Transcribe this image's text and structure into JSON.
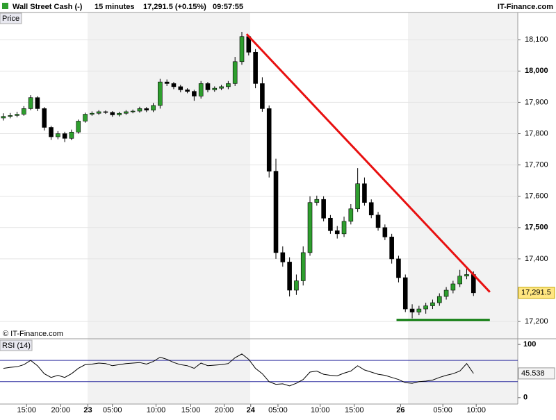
{
  "header": {
    "title": "Wall Street Cash (-)",
    "interval": "15 minutes",
    "price": "17,291.5 (+0.15%)",
    "time": "09:57:55",
    "brand": "IT-Finance.com"
  },
  "chart_data": [
    {
      "type": "candlestick",
      "label": "Price",
      "credit": "© IT-Finance.com",
      "up_color": "#2e9e2e",
      "down_color": "#000000",
      "x": [
        0.5,
        1.5,
        2.5,
        3.5,
        4.5,
        5.5,
        6.5,
        7.5,
        8.5,
        9.5,
        10.5,
        11.5,
        12.5,
        13.5,
        14.5,
        15.5,
        16.5,
        17.5,
        18.5,
        19.5,
        20.5,
        21.5,
        22.5,
        23.5,
        24.5,
        25.5,
        26.5,
        27.5,
        28.5,
        29.5,
        30.5,
        31.5,
        32.5,
        33.5,
        34.5,
        35.5,
        36.5,
        37.5,
        38.5,
        39.5,
        40.5,
        41.5,
        42.5,
        43.5,
        44.5,
        45.5,
        46.5,
        47.5,
        48.5,
        49.5,
        50.5,
        51.5,
        52.5,
        53.5,
        54.5,
        55.5,
        56.5,
        57.5,
        58.5,
        59.5,
        60.5,
        61.5,
        62.5,
        63.5,
        64.5,
        65.5,
        66.5,
        67.5,
        68.5,
        69.5
      ],
      "open": [
        17850,
        17855,
        17858,
        17862,
        17880,
        17915,
        17880,
        17820,
        17790,
        17800,
        17785,
        17805,
        17840,
        17862,
        17865,
        17870,
        17868,
        17860,
        17865,
        17870,
        17872,
        17880,
        17875,
        17890,
        17965,
        17960,
        17950,
        17940,
        17935,
        17920,
        17960,
        17940,
        17945,
        17950,
        17960,
        18030,
        18110,
        18060,
        17960,
        17880,
        17680,
        17420,
        17390,
        17300,
        17330,
        17420,
        17580,
        17590,
        17530,
        17490,
        17480,
        17520,
        17560,
        17640,
        17580,
        17540,
        17500,
        17470,
        17400,
        17340,
        17240,
        17230,
        17240,
        17250,
        17260,
        17280,
        17300,
        17320,
        17345,
        17350
      ],
      "high": [
        17865,
        17866,
        17870,
        17888,
        17923,
        17920,
        17885,
        17825,
        17808,
        17806,
        17813,
        17845,
        17867,
        17871,
        17875,
        17874,
        17872,
        17870,
        17875,
        17877,
        17886,
        17885,
        17898,
        17975,
        17973,
        17965,
        17956,
        17945,
        17940,
        17968,
        17965,
        17951,
        17956,
        17968,
        18045,
        18125,
        18115,
        18070,
        17980,
        17890,
        17720,
        17440,
        17405,
        17350,
        17440,
        17600,
        17602,
        17600,
        17540,
        17505,
        17535,
        17575,
        17690,
        17660,
        17590,
        17550,
        17510,
        17480,
        17410,
        17350,
        17255,
        17250,
        17260,
        17270,
        17290,
        17310,
        17330,
        17365,
        17375,
        17360
      ],
      "low": [
        17842,
        17849,
        17852,
        17857,
        17875,
        17872,
        17810,
        17780,
        17782,
        17773,
        17779,
        17800,
        17835,
        17857,
        17860,
        17863,
        17854,
        17855,
        17860,
        17865,
        17867,
        17869,
        17869,
        17880,
        17952,
        17942,
        17932,
        17929,
        17905,
        17912,
        17932,
        17934,
        17939,
        17942,
        17952,
        18020,
        18050,
        17945,
        17870,
        17660,
        17400,
        17375,
        17280,
        17285,
        17315,
        17410,
        17570,
        17520,
        17480,
        17465,
        17470,
        17510,
        17550,
        17570,
        17530,
        17490,
        17460,
        17385,
        17325,
        17230,
        17210,
        17220,
        17225,
        17240,
        17250,
        17270,
        17290,
        17310,
        17335,
        17281.5
      ],
      "close": [
        17855,
        17858,
        17862,
        17880,
        17915,
        17880,
        17820,
        17790,
        17800,
        17785,
        17805,
        17840,
        17862,
        17865,
        17870,
        17868,
        17860,
        17865,
        17870,
        17872,
        17880,
        17875,
        17890,
        17965,
        17960,
        17950,
        17940,
        17935,
        17920,
        17960,
        17940,
        17945,
        17950,
        17960,
        18030,
        18110,
        18060,
        17960,
        17880,
        17680,
        17420,
        17390,
        17300,
        17330,
        17420,
        17580,
        17590,
        17530,
        17490,
        17480,
        17520,
        17560,
        17640,
        17580,
        17540,
        17500,
        17470,
        17400,
        17340,
        17240,
        17230,
        17240,
        17250,
        17260,
        17280,
        17300,
        17320,
        17345,
        17350,
        17291.5
      ],
      "last_label": "17,291.5",
      "xlim": [
        0,
        76
      ],
      "ylim": [
        17147,
        18187
      ],
      "yticks": [
        {
          "value": 17200,
          "label": "17,200"
        },
        {
          "value": 17400,
          "label": "17,400"
        },
        {
          "value": 17500,
          "label": "17,500"
        },
        {
          "value": 17600,
          "label": "17,600"
        },
        {
          "value": 17700,
          "label": "17,700"
        },
        {
          "value": 17800,
          "label": "17,800"
        },
        {
          "value": 17900,
          "label": "17,900"
        },
        {
          "value": 18000,
          "label": "18,000"
        },
        {
          "value": 18100,
          "label": "18,100"
        }
      ],
      "trendlines": [
        {
          "color": "#e81010",
          "x": [
            36.2,
            71.9
          ],
          "y": [
            18118,
            17294
          ]
        },
        {
          "color": "#0a7a0a",
          "x": [
            58.2,
            71.9
          ],
          "y": [
            17205,
            17205
          ]
        }
      ]
    },
    {
      "type": "line",
      "label": "RSI (14)",
      "color": "#000000",
      "level_color": "#3030a0",
      "x": [
        0.5,
        1.5,
        2.5,
        3.5,
        4.5,
        5.5,
        6.5,
        7.5,
        8.5,
        9.5,
        10.5,
        11.5,
        12.5,
        13.5,
        14.5,
        15.5,
        16.5,
        17.5,
        18.5,
        19.5,
        20.5,
        21.5,
        22.5,
        23.5,
        24.5,
        25.5,
        26.5,
        27.5,
        28.5,
        29.5,
        30.5,
        31.5,
        32.5,
        33.5,
        34.5,
        35.5,
        36.5,
        37.5,
        38.5,
        39.5,
        40.5,
        41.5,
        42.5,
        43.5,
        44.5,
        45.5,
        46.5,
        47.5,
        48.5,
        49.5,
        50.5,
        51.5,
        52.5,
        53.5,
        54.5,
        55.5,
        56.5,
        57.5,
        58.5,
        59.5,
        60.5,
        61.5,
        62.5,
        63.5,
        64.5,
        65.5,
        66.5,
        67.5,
        68.5,
        69.5
      ],
      "values": [
        55,
        57,
        58,
        62,
        70,
        60,
        45,
        38,
        42,
        38,
        45,
        55,
        62,
        63,
        65,
        64,
        60,
        62,
        64,
        65,
        66,
        63,
        68,
        76,
        72,
        66,
        62,
        60,
        55,
        65,
        60,
        61,
        62,
        64,
        75,
        82,
        72,
        55,
        45,
        30,
        25,
        26,
        22,
        27,
        34,
        48,
        50,
        44,
        42,
        41,
        46,
        50,
        60,
        52,
        48,
        44,
        42,
        38,
        34,
        28,
        27,
        30,
        31,
        33,
        38,
        42,
        45,
        50,
        64,
        45.538
      ],
      "levels": [
        30,
        70
      ],
      "xlim": [
        0,
        76
      ],
      "ylim": [
        -12,
        108
      ],
      "yticks": [
        0,
        100
      ],
      "xticks": [
        {
          "value": 3.9,
          "label": "15:00"
        },
        {
          "value": 8.9,
          "label": "20:00"
        },
        {
          "value": 12.9,
          "label": "23"
        },
        {
          "value": 16.5,
          "label": "05:00"
        },
        {
          "value": 22.9,
          "label": "10:00"
        },
        {
          "value": 28,
          "label": "15:00"
        },
        {
          "value": 32.9,
          "label": "20:00"
        },
        {
          "value": 36.8,
          "label": "24"
        },
        {
          "value": 40.8,
          "label": "05:00"
        },
        {
          "value": 47,
          "label": "10:00"
        },
        {
          "value": 52,
          "label": "15:00"
        },
        {
          "value": 58.8,
          "label": "26"
        },
        {
          "value": 65,
          "label": "05:00"
        },
        {
          "value": 69.9,
          "label": "10:00"
        }
      ]
    }
  ]
}
